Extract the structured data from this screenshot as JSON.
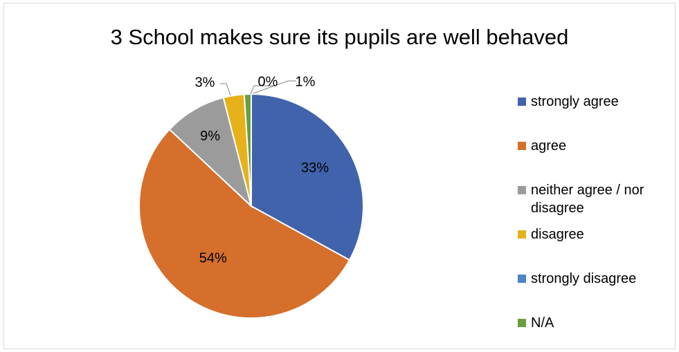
{
  "chart_data": {
    "type": "pie",
    "title": "3 School makes sure its pupils are well behaved",
    "categories": [
      "strongly agree",
      "agree",
      "neither agree / nor disagree",
      "disagree",
      "strongly disagree",
      "N/A"
    ],
    "values": [
      33,
      54,
      9,
      3,
      0,
      1
    ],
    "data_labels": [
      "33%",
      "54%",
      "9%",
      "3%",
      "0%",
      "1%"
    ],
    "colors": [
      "#4063ac",
      "#d56f2b",
      "#9b9b9b",
      "#e6b11a",
      "#4a86c3",
      "#6a9e3e"
    ],
    "legend_position": "right"
  }
}
